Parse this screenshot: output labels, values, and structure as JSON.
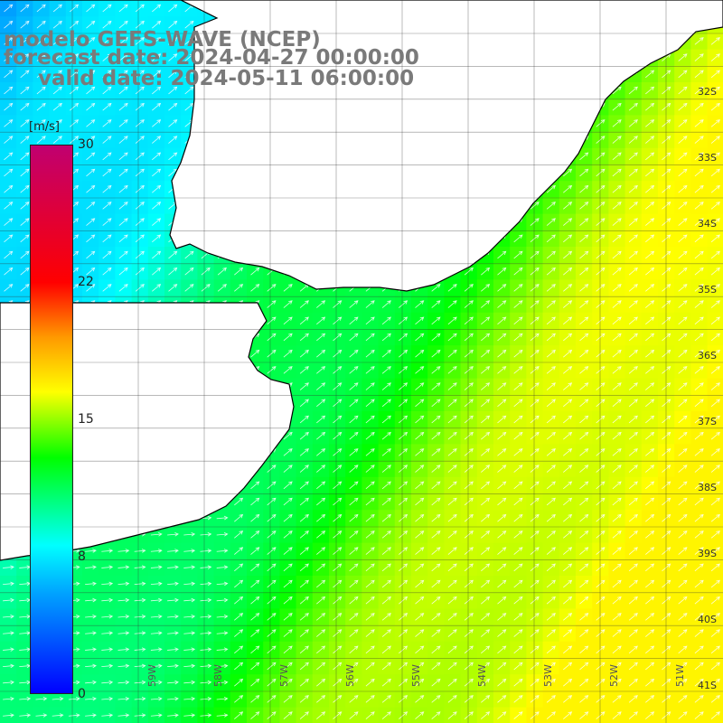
{
  "title": {
    "line1": "modelo GEFS-WAVE (NCEP)",
    "line2": "forecast date: 2024-04-27 00:00:00",
    "line3": "valid date: 2024-05-11 06:00:00"
  },
  "colorbar": {
    "unit": "[m/s]",
    "ticks": [
      "30",
      "22",
      "15",
      "8",
      "0"
    ],
    "colors": [
      "#0000ff",
      "#00a0ff",
      "#00ffff",
      "#00ff00",
      "#80ff00",
      "#ffff00",
      "#ff9900",
      "#ff0000",
      "#c00070"
    ]
  },
  "lat_labels": [
    "32S",
    "33S",
    "34S",
    "35S",
    "36S",
    "37S",
    "38S",
    "39S",
    "40S",
    "41S"
  ],
  "lon_labels": [
    "59W",
    "58W",
    "57W",
    "56W",
    "55W",
    "54W",
    "53W",
    "52W",
    "51W"
  ],
  "colors": {
    "land": "#ffffff",
    "coast": "#000000",
    "grid": "#333333",
    "arrow": "#ffffff"
  }
}
